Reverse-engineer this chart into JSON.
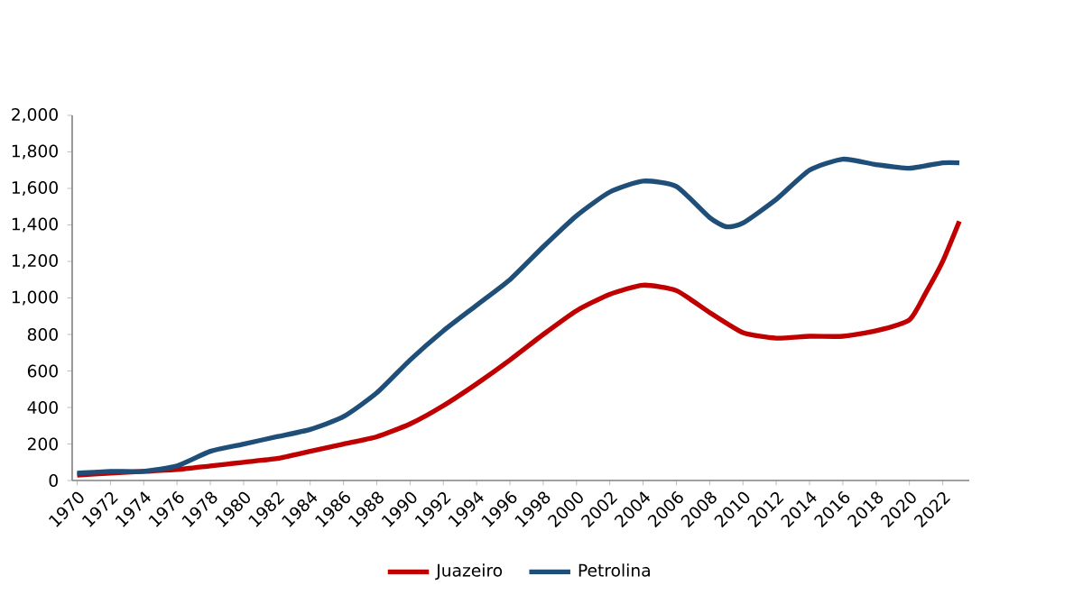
{
  "chart_data": {
    "type": "line",
    "legend": "bottom",
    "grid": false,
    "marker": "none",
    "line_style": "solid",
    "xlim": [
      1969.7,
      2023.6
    ],
    "xticks": [
      1970,
      1972,
      1974,
      1976,
      1978,
      1980,
      1982,
      1984,
      1986,
      1988,
      1990,
      1992,
      1994,
      1996,
      1998,
      2000,
      2002,
      2004,
      2006,
      2008,
      2010,
      2012,
      2014,
      2016,
      2018,
      2020,
      2022
    ],
    "ylim": [
      0,
      2000
    ],
    "yticks": [
      0,
      200,
      400,
      600,
      800,
      {
        "value": 1000,
        "label": "1,000"
      },
      {
        "value": 1200,
        "label": "1,200"
      },
      {
        "value": 1400,
        "label": "1,400"
      },
      {
        "value": 1600,
        "label": "1,600"
      },
      {
        "value": 1800,
        "label": "1,800"
      },
      {
        "value": 2000,
        "label": "2,000"
      }
    ],
    "series": [
      {
        "name": "Juazeiro",
        "color": "#c00000",
        "x": [
          1970,
          1972,
          1974,
          1976,
          1978,
          1980,
          1982,
          1984,
          1986,
          1988,
          1990,
          1992,
          1994,
          1996,
          1998,
          2000,
          2002,
          2004,
          2006,
          2008,
          2010,
          2012,
          2014,
          2016,
          2018,
          2020,
          2021,
          2022,
          2023
        ],
        "values": [
          30,
          40,
          50,
          60,
          80,
          100,
          120,
          160,
          200,
          240,
          310,
          410,
          530,
          660,
          800,
          930,
          1020,
          1070,
          1040,
          920,
          810,
          780,
          790,
          790,
          820,
          880,
          1030,
          1200,
          1420
        ]
      },
      {
        "name": "Petrolina",
        "color": "#1f4e79",
        "x": [
          1970,
          1972,
          1974,
          1976,
          1978,
          1980,
          1982,
          1984,
          1986,
          1988,
          1990,
          1992,
          1994,
          1996,
          1998,
          2000,
          2002,
          2004,
          2006,
          2008,
          2009,
          2010,
          2012,
          2014,
          2016,
          2018,
          2020,
          2022,
          2023
        ],
        "values": [
          40,
          50,
          50,
          80,
          160,
          200,
          240,
          280,
          350,
          480,
          660,
          820,
          960,
          1100,
          1280,
          1450,
          1580,
          1640,
          1610,
          1440,
          1390,
          1410,
          1540,
          1700,
          1760,
          1730,
          1710,
          1740,
          1740
        ]
      }
    ]
  }
}
